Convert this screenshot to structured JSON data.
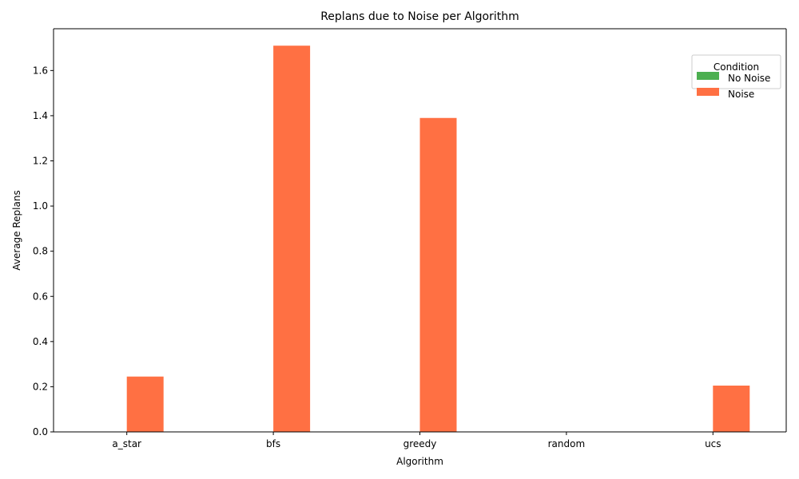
{
  "chart_data": {
    "type": "bar",
    "title": "Replans due to Noise per Algorithm",
    "xlabel": "Algorithm",
    "ylabel": "Average Replans",
    "categories": [
      "a_star",
      "bfs",
      "greedy",
      "random",
      "ucs"
    ],
    "series": [
      {
        "name": "No Noise",
        "color": "#4caf50",
        "values": [
          0,
          0,
          0,
          0,
          0
        ]
      },
      {
        "name": "Noise",
        "color": "#ff7043",
        "values": [
          0.245,
          1.71,
          1.39,
          0,
          0.205
        ]
      }
    ],
    "ylim": [
      0,
      1.785
    ],
    "yticks": [
      "0.0",
      "0.2",
      "0.4",
      "0.6",
      "0.8",
      "1.0",
      "1.2",
      "1.4",
      "1.6"
    ],
    "legend": {
      "title": "Condition",
      "position": "top-right"
    },
    "grid": false
  }
}
